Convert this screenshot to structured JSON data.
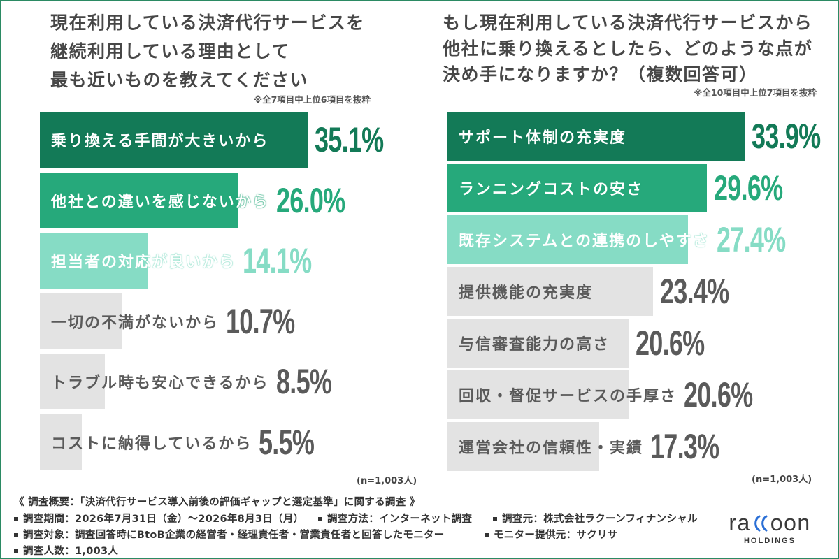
{
  "colors": {
    "accent_dark": "#137a57",
    "accent_mid": "#26a97b",
    "accent_light": "#86dcc5",
    "neutral_bar": "#e3e3e3",
    "neutral_text": "#5a5a5a",
    "label_on_accent": "#ffffff",
    "title_text": "#474747",
    "border": "#2b8a63",
    "logo_accent": "#2a6fd6"
  },
  "chart_data": [
    {
      "type": "bar",
      "orientation": "horizontal",
      "title_lines": [
        "現在利用している決済代行サービスを",
        "継続利用している理由として",
        "最も近いものを教えてください"
      ],
      "note": "※全7項目中上位6項目を抜粋",
      "categories": [
        "乗り換える手間が大きいから",
        "他社との違いを感じないから",
        "担当者の対応が良いから",
        "一切の不満がないから",
        "トラブル時も安心できるから",
        "コストに納得しているから"
      ],
      "values": [
        35.1,
        26.0,
        14.1,
        10.7,
        8.5,
        5.5
      ],
      "unit": "%",
      "bar_colors": [
        "#137a57",
        "#26a97b",
        "#86dcc5",
        "#e3e3e3",
        "#e3e3e3",
        "#e3e3e3"
      ],
      "sample_size": "(n=1,003人)",
      "grid": false
    },
    {
      "type": "bar",
      "orientation": "horizontal",
      "title_lines": [
        "もし現在利用している決済代行サービスから",
        "他社に乗り換えるとしたら、どのような点が",
        "決め手になりますか？（複数回答可）"
      ],
      "note": "※全10項目中上位7項目を抜粋",
      "categories": [
        "サポート体制の充実度",
        "ランニングコストの安さ",
        "既存システムとの連携のしやすさ",
        "提供機能の充実度",
        "与信審査能力の高さ",
        "回収・督促サービスの手厚さ",
        "運営会社の信頼性・実績"
      ],
      "values": [
        33.9,
        29.6,
        27.4,
        23.4,
        20.6,
        20.6,
        17.3
      ],
      "unit": "%",
      "bar_colors": [
        "#137a57",
        "#26a97b",
        "#86dcc5",
        "#e3e3e3",
        "#e3e3e3",
        "#e3e3e3",
        "#e3e3e3"
      ],
      "sample_size": "(n=1,003人)",
      "grid": false
    }
  ],
  "footer": {
    "heading": "《 調査概要：「決済代行サービス導入前後の評価ギャップと選定基準」に関する調査 》",
    "items": [
      "調査期間：2026年7月31日（金）〜2026年8月3日（月）",
      "調査方法：インターネット調査",
      "調査元：株式会社ラクーンフィナンシャル",
      "調査対象：調査回答時にBtoB企業の経営者・経理責任者・営業責任者と回答したモニター",
      "モニター提供元：サクリサ",
      "調査人数：1,003人"
    ]
  },
  "logo": {
    "wordmark": "raccoon",
    "subtitle": "HOLDINGS"
  }
}
